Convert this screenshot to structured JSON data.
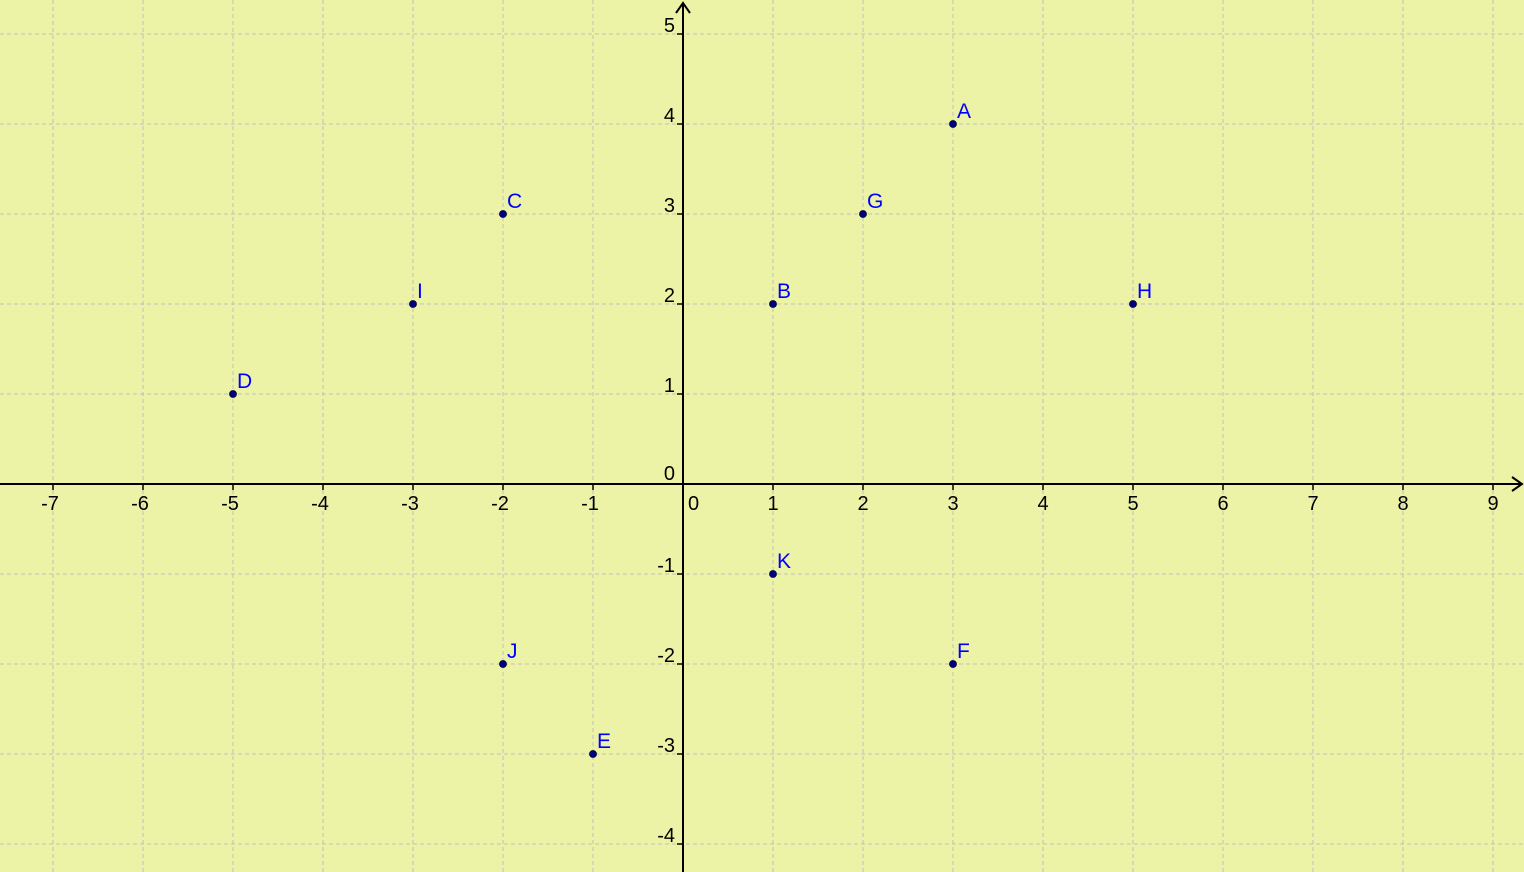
{
  "chart_data": {
    "type": "scatter",
    "xlim": [
      -7.35,
      9.25
    ],
    "ylim": [
      -4.3,
      5.35
    ],
    "x_ticks": [
      -7,
      -6,
      -5,
      -4,
      -3,
      -2,
      -1,
      0,
      1,
      2,
      3,
      4,
      5,
      6,
      7,
      8,
      9
    ],
    "y_ticks": [
      -4,
      -3,
      -2,
      -1,
      0,
      1,
      2,
      3,
      4,
      5
    ],
    "x_tick_labels": [
      "-7",
      "-6",
      "-5",
      "-4",
      "-3",
      "-2",
      "-1",
      "0",
      "1",
      "2",
      "3",
      "4",
      "5",
      "6",
      "7",
      "8",
      "9"
    ],
    "y_tick_labels": [
      "-4",
      "-3",
      "-2",
      "-1",
      "0",
      "1",
      "2",
      "3",
      "4",
      "5"
    ],
    "grid": true,
    "points": [
      {
        "label": "A",
        "x": 3,
        "y": 4
      },
      {
        "label": "B",
        "x": 1,
        "y": 2
      },
      {
        "label": "C",
        "x": -2,
        "y": 3
      },
      {
        "label": "D",
        "x": -5,
        "y": 1
      },
      {
        "label": "E",
        "x": -1,
        "y": -3
      },
      {
        "label": "F",
        "x": 3,
        "y": -2
      },
      {
        "label": "G",
        "x": 2,
        "y": 3
      },
      {
        "label": "H",
        "x": 5,
        "y": 2
      },
      {
        "label": "I",
        "x": -3,
        "y": 2
      },
      {
        "label": "J",
        "x": -2,
        "y": -2
      },
      {
        "label": "K",
        "x": 1,
        "y": -1
      }
    ]
  },
  "colors": {
    "background": "#EDF3A6",
    "grid": "#BFBFBF",
    "axis": "#000000",
    "point": "#00007F",
    "point_label": "#0000FF"
  }
}
